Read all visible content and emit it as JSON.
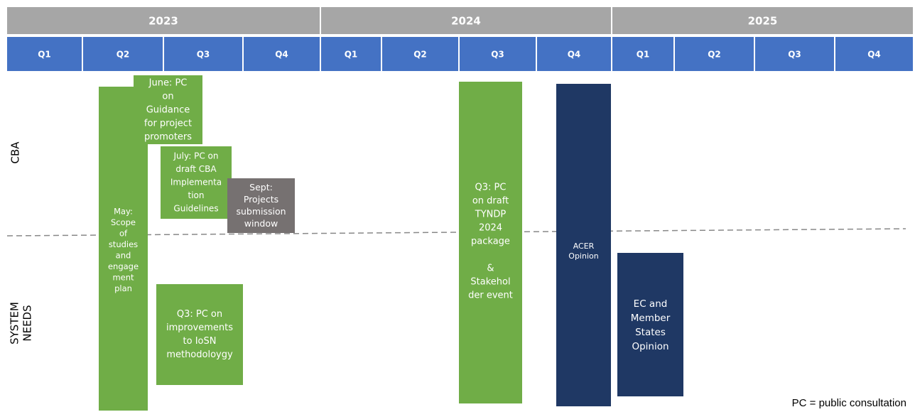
{
  "timeline": {
    "years": [
      {
        "label": "2023",
        "quarters": [
          "Q1",
          "Q2",
          "Q3",
          "Q4"
        ]
      },
      {
        "label": "2024",
        "quarters": [
          "Q1",
          "Q2",
          "Q3",
          "Q4"
        ]
      },
      {
        "label": "2025",
        "quarters": [
          "Q1",
          "Q2",
          "Q3",
          "Q4"
        ]
      }
    ],
    "rows": [
      {
        "label": [
          "CBA"
        ]
      },
      {
        "label": [
          "SYSTEM",
          "NEEDS"
        ]
      }
    ],
    "boxes": [
      {
        "lines": [
          "May:",
          "Scope",
          "of",
          "studies",
          "and",
          "engage",
          "ment",
          "plan"
        ]
      },
      {
        "lines": [
          "June: PC",
          "on",
          "Guidance",
          "for project",
          "promoters"
        ]
      },
      {
        "lines": [
          "July: PC on",
          "draft CBA",
          "Implementa",
          "tion",
          "Guidelines"
        ]
      },
      {
        "lines": [
          "Sept:",
          "Projects",
          "submission",
          "window"
        ]
      },
      {
        "lines": [
          "Q3: PC on",
          "improvements",
          "to IoSN",
          "methodoloygy"
        ]
      },
      {
        "lines": [
          "Q3: PC",
          "on draft",
          "TYNDP",
          "2024",
          "package",
          "&",
          "Stakehol",
          "der event"
        ]
      },
      {
        "lines": [
          "ACER",
          "Opinion"
        ]
      },
      {
        "lines": [
          "EC and",
          "Member",
          "States",
          "Opinion"
        ]
      }
    ],
    "footnote": "PC = public consultation"
  }
}
